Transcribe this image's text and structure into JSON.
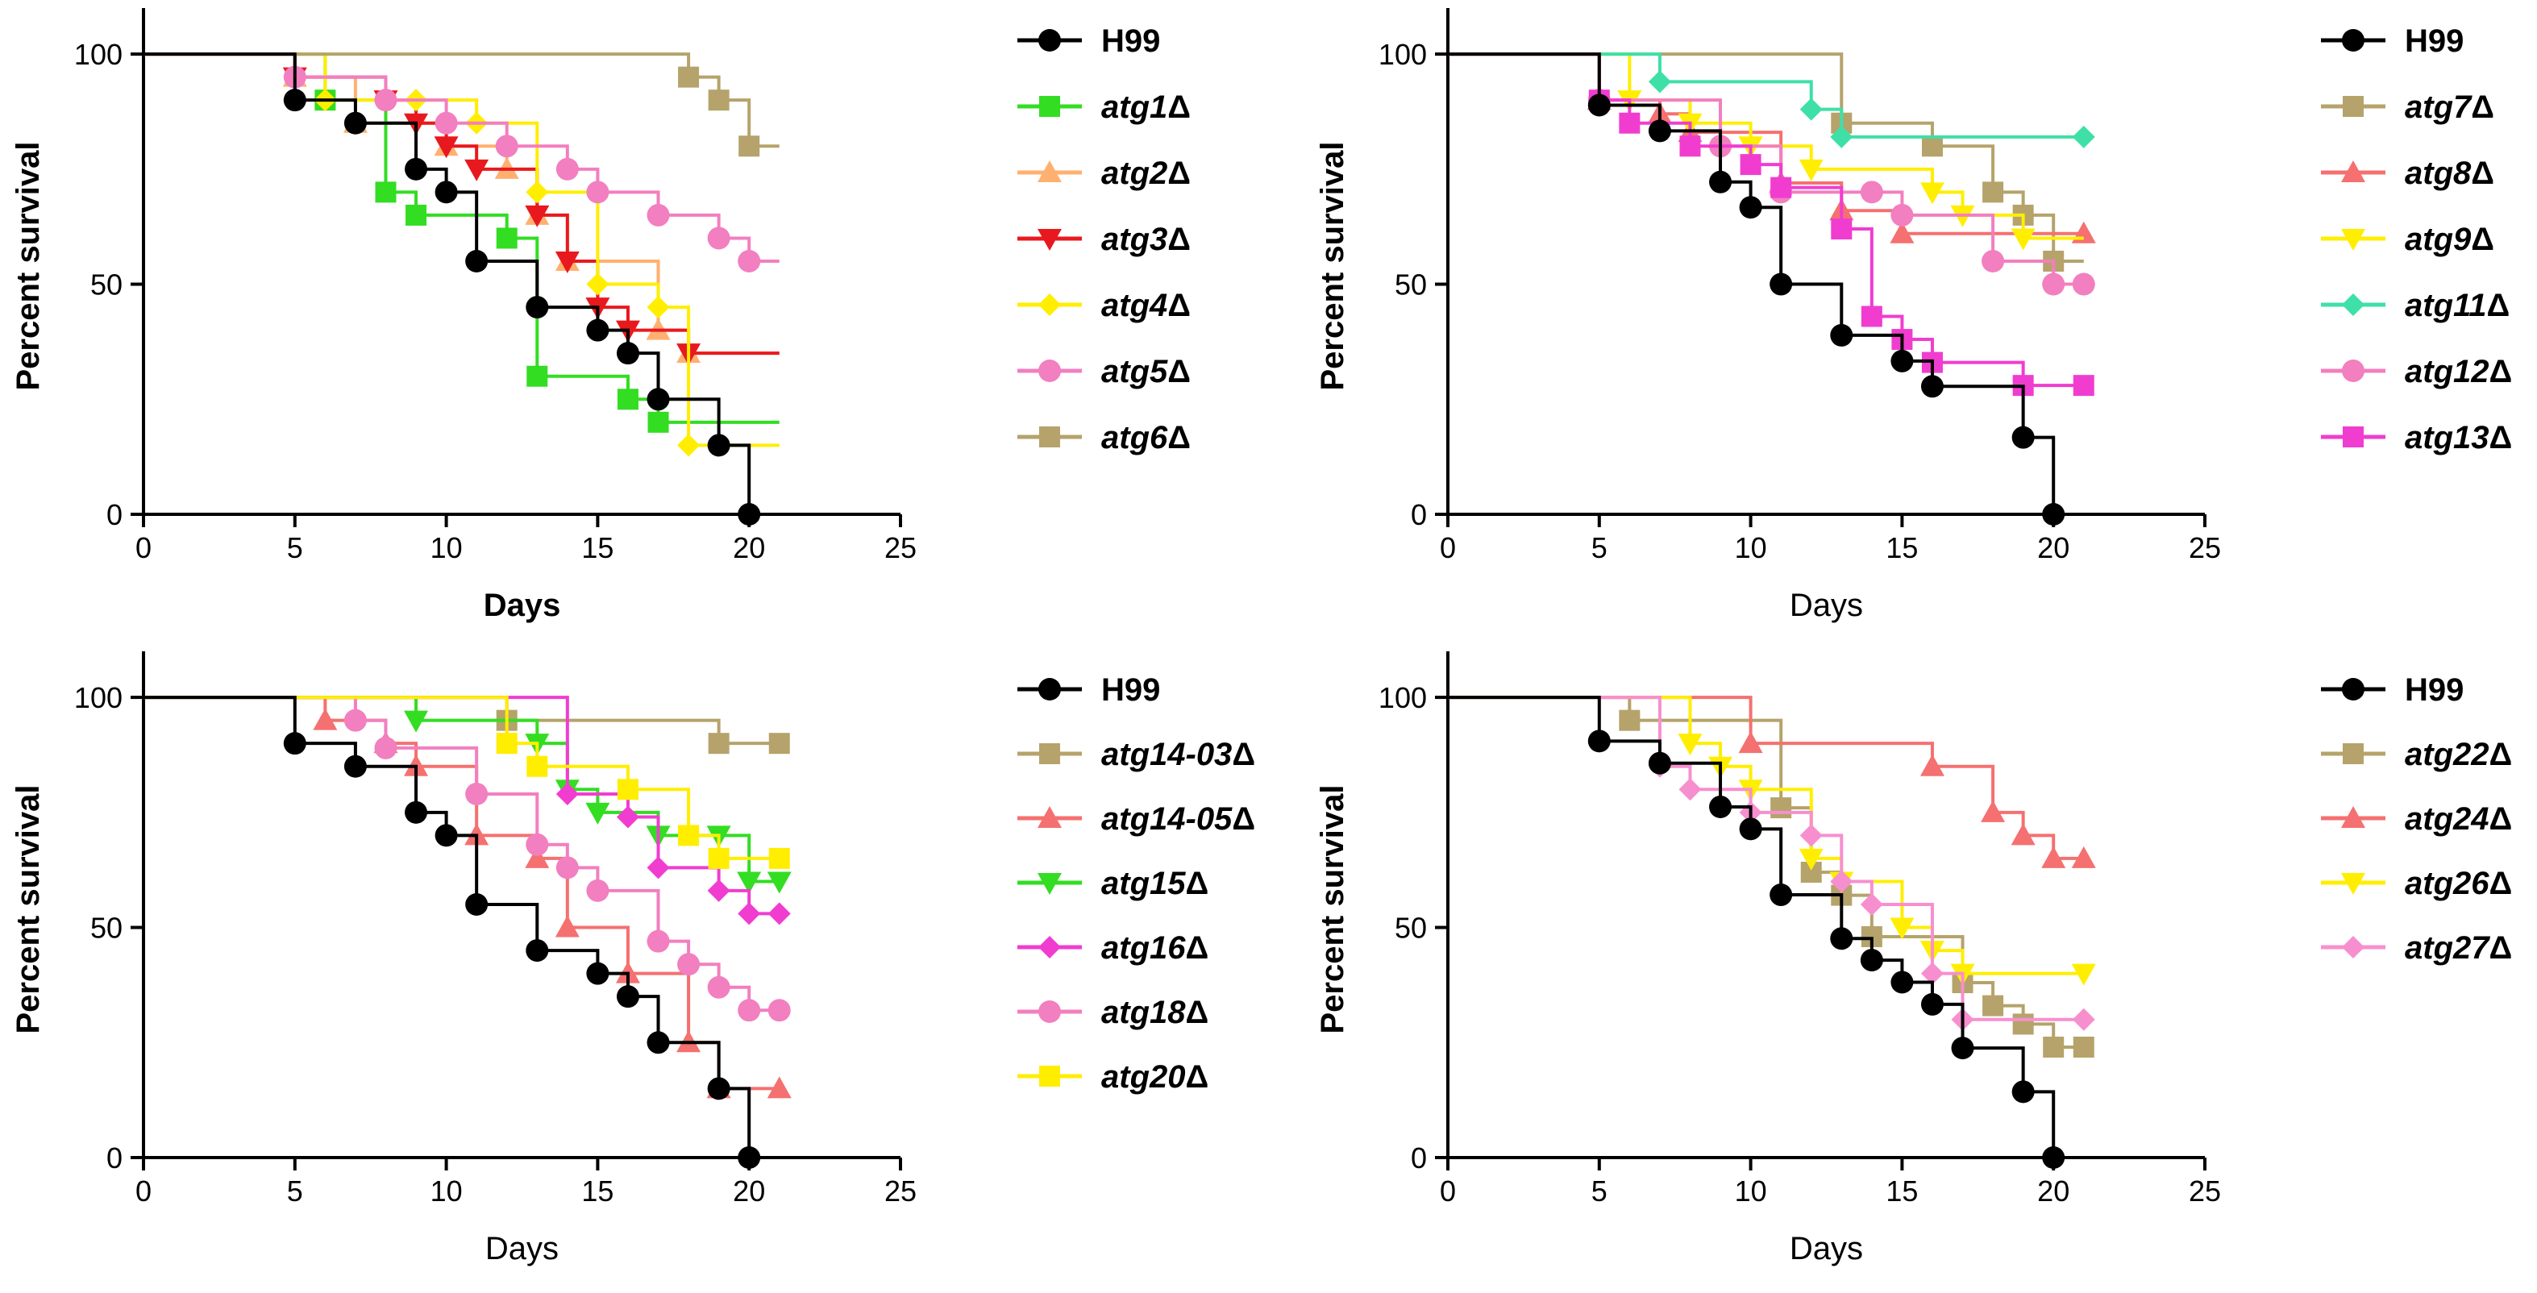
{
  "chart_data": [
    {
      "type": "line",
      "subtype": "kaplan-meier-step",
      "title": "",
      "xlabel": "Days",
      "xlabel_bold": true,
      "ylabel": "Percent survival",
      "xlim": [
        0,
        25
      ],
      "ylim": [
        0,
        110
      ],
      "xticks": [
        0,
        5,
        10,
        15,
        20,
        25
      ],
      "yticks": [
        0,
        50,
        100
      ],
      "legend_position": "right",
      "series": [
        {
          "name": "H99",
          "label_part": "H99",
          "italic": false,
          "color": "#000000",
          "marker": "circle",
          "x": [
            5,
            7,
            9,
            10,
            11,
            13,
            15,
            16,
            17,
            19,
            20
          ],
          "y": [
            90,
            85,
            75,
            70,
            55,
            45,
            40,
            35,
            25,
            15,
            0
          ],
          "end_x": 20
        },
        {
          "name": "atg1Δ",
          "label_part": "atg1",
          "italic": true,
          "color": "#33dd22",
          "marker": "square",
          "x": [
            6,
            8,
            9,
            12,
            13,
            16,
            17
          ],
          "y": [
            90,
            70,
            65,
            60,
            30,
            25,
            20
          ],
          "end_x": 21
        },
        {
          "name": "atg2Δ",
          "label_part": "atg2",
          "italic": true,
          "color": "#ffb070",
          "marker": "triangle-up",
          "x": [
            5,
            7,
            10,
            12,
            13,
            14,
            17,
            18
          ],
          "y": [
            95,
            85,
            80,
            75,
            65,
            55,
            40,
            35
          ],
          "end_x": 21
        },
        {
          "name": "atg3Δ",
          "label_part": "atg3",
          "italic": true,
          "color": "#e8191e",
          "marker": "triangle-down",
          "x": [
            5,
            8,
            9,
            10,
            11,
            13,
            14,
            15,
            16,
            18
          ],
          "y": [
            95,
            90,
            85,
            80,
            75,
            65,
            55,
            45,
            40,
            35
          ],
          "end_x": 21
        },
        {
          "name": "atg4Δ",
          "label_part": "atg4",
          "italic": true,
          "color": "#ffee00",
          "marker": "diamond",
          "x": [
            6,
            9,
            11,
            13,
            15,
            17,
            18
          ],
          "y": [
            90,
            90,
            85,
            70,
            50,
            45,
            15
          ],
          "end_x": 21
        },
        {
          "name": "atg5Δ",
          "label_part": "atg5",
          "italic": true,
          "color": "#f27fbf",
          "marker": "circle",
          "x": [
            5,
            8,
            10,
            12,
            14,
            15,
            17,
            19,
            20
          ],
          "y": [
            95,
            90,
            85,
            80,
            75,
            70,
            65,
            60,
            55
          ],
          "end_x": 21
        },
        {
          "name": "atg6Δ",
          "label_part": "atg6",
          "italic": true,
          "color": "#b5a36b",
          "marker": "square",
          "x": [
            18,
            19,
            20
          ],
          "y": [
            95,
            90,
            80
          ],
          "end_x": 21
        }
      ]
    },
    {
      "type": "line",
      "subtype": "kaplan-meier-step",
      "title": "",
      "xlabel": "Days",
      "xlabel_bold": false,
      "ylabel": "Percent survival",
      "xlim": [
        0,
        25
      ],
      "ylim": [
        0,
        110
      ],
      "xticks": [
        0,
        5,
        10,
        15,
        20,
        25
      ],
      "yticks": [
        0,
        50,
        100
      ],
      "legend_position": "right",
      "series": [
        {
          "name": "H99",
          "label_part": "H99",
          "italic": false,
          "color": "#000000",
          "marker": "circle",
          "x": [
            5,
            7,
            9,
            10,
            11,
            13,
            15,
            16,
            19,
            20
          ],
          "y": [
            88.9,
            83.3,
            72.2,
            66.7,
            50,
            38.9,
            33.3,
            27.8,
            16.7,
            0
          ],
          "end_x": 20
        },
        {
          "name": "atg7Δ",
          "label_part": "atg7",
          "italic": true,
          "color": "#b5a36b",
          "marker": "square",
          "x": [
            13,
            16,
            18,
            19,
            20
          ],
          "y": [
            85,
            80,
            70,
            65,
            55
          ],
          "end_x": 21
        },
        {
          "name": "atg8Δ",
          "label_part": "atg8",
          "italic": true,
          "color": "#f57070",
          "marker": "triangle-up",
          "x": [
            5,
            7,
            8,
            11,
            13,
            15,
            21
          ],
          "y": [
            90,
            87,
            83,
            72,
            66,
            61,
            61
          ],
          "end_x": 21
        },
        {
          "name": "atg9Δ",
          "label_part": "atg9",
          "italic": true,
          "color": "#ffee00",
          "marker": "triangle-down",
          "x": [
            6,
            8,
            10,
            12,
            16,
            17,
            19
          ],
          "y": [
            90,
            85,
            80,
            75,
            70,
            65,
            60
          ],
          "end_x": 21
        },
        {
          "name": "atg11Δ",
          "label_part": "atg11",
          "italic": true,
          "color": "#3ee0a7",
          "marker": "diamond",
          "x": [
            7,
            12,
            13,
            21
          ],
          "y": [
            94,
            88,
            82,
            82
          ],
          "end_x": 21
        },
        {
          "name": "atg12Δ",
          "label_part": "atg12",
          "italic": true,
          "color": "#f27fbf",
          "marker": "circle",
          "x": [
            5,
            9,
            11,
            14,
            15,
            18,
            20,
            21
          ],
          "y": [
            90,
            80,
            70,
            70,
            65,
            55,
            50,
            50
          ],
          "end_x": 21
        },
        {
          "name": "atg13Δ",
          "label_part": "atg13",
          "italic": true,
          "color": "#f03dd0",
          "marker": "square",
          "x": [
            5,
            6,
            8,
            10,
            11,
            13,
            14,
            15,
            16,
            19,
            21
          ],
          "y": [
            90,
            85,
            80,
            76,
            71,
            62,
            43,
            38,
            33,
            28,
            28
          ],
          "end_x": 21
        }
      ]
    },
    {
      "type": "line",
      "subtype": "kaplan-meier-step",
      "title": "",
      "xlabel": "Days",
      "xlabel_bold": false,
      "ylabel": "Percent survival",
      "xlim": [
        0,
        25
      ],
      "ylim": [
        0,
        110
      ],
      "xticks": [
        0,
        5,
        10,
        15,
        20,
        25
      ],
      "yticks": [
        0,
        50,
        100
      ],
      "legend_position": "right",
      "series": [
        {
          "name": "H99",
          "label_part": "H99",
          "italic": false,
          "color": "#000000",
          "marker": "circle",
          "x": [
            5,
            7,
            9,
            10,
            11,
            13,
            15,
            16,
            17,
            19,
            20
          ],
          "y": [
            90,
            85,
            75,
            70,
            55,
            45,
            40,
            35,
            25,
            15,
            0
          ],
          "end_x": 20
        },
        {
          "name": "atg14-03Δ",
          "label_part": "atg14-03",
          "italic": true,
          "color": "#b5a36b",
          "marker": "square",
          "x": [
            12,
            19,
            21
          ],
          "y": [
            95,
            90,
            90
          ],
          "end_x": 21
        },
        {
          "name": "atg14-05Δ",
          "label_part": "atg14-05",
          "italic": true,
          "color": "#f57070",
          "marker": "triangle-up",
          "x": [
            6,
            8,
            9,
            11,
            13,
            14,
            16,
            18,
            19,
            21
          ],
          "y": [
            95,
            90,
            85,
            70,
            65,
            50,
            40,
            25,
            15,
            15
          ],
          "end_x": 21
        },
        {
          "name": "atg15Δ",
          "label_part": "atg15",
          "italic": true,
          "color": "#33dd22",
          "marker": "triangle-down",
          "x": [
            9,
            13,
            14,
            15,
            17,
            19,
            20,
            21
          ],
          "y": [
            95,
            90,
            80,
            75,
            70,
            70,
            60,
            60
          ],
          "end_x": 21
        },
        {
          "name": "atg16Δ",
          "label_part": "atg16",
          "italic": true,
          "color": "#f03dd0",
          "marker": "diamond",
          "x": [
            14,
            16,
            17,
            19,
            20,
            21
          ],
          "y": [
            79,
            74,
            63,
            58,
            53,
            53
          ],
          "end_x": 21
        },
        {
          "name": "atg18Δ",
          "label_part": "atg18",
          "italic": true,
          "color": "#f27fbf",
          "marker": "circle",
          "x": [
            7,
            8,
            11,
            13,
            14,
            15,
            17,
            18,
            19,
            20,
            21
          ],
          "y": [
            95,
            89,
            79,
            68,
            63,
            58,
            47,
            42,
            37,
            32,
            32
          ],
          "end_x": 21
        },
        {
          "name": "atg20Δ",
          "label_part": "atg20",
          "italic": true,
          "color": "#ffee00",
          "marker": "square",
          "x": [
            12,
            13,
            16,
            18,
            19,
            21
          ],
          "y": [
            90,
            85,
            80,
            70,
            65,
            65
          ],
          "end_x": 21
        }
      ]
    },
    {
      "type": "line",
      "subtype": "kaplan-meier-step",
      "title": "",
      "xlabel": "Days",
      "xlabel_bold": false,
      "ylabel": "Percent survival",
      "xlim": [
        0,
        25
      ],
      "ylim": [
        0,
        110
      ],
      "xticks": [
        0,
        5,
        10,
        15,
        20,
        25
      ],
      "yticks": [
        0,
        50,
        100
      ],
      "legend_position": "right",
      "series": [
        {
          "name": "H99",
          "label_part": "H99",
          "italic": false,
          "color": "#000000",
          "marker": "circle",
          "x": [
            5,
            7,
            9,
            10,
            11,
            13,
            14,
            15,
            16,
            17,
            19,
            20
          ],
          "y": [
            90.5,
            85.7,
            76.2,
            71.4,
            57.1,
            47.6,
            42.9,
            38.1,
            33.3,
            23.8,
            14.3,
            0
          ],
          "end_x": 20
        },
        {
          "name": "atg22Δ",
          "label_part": "atg22",
          "italic": true,
          "color": "#b5a36b",
          "marker": "square",
          "x": [
            6,
            11,
            12,
            13,
            14,
            17,
            18,
            19,
            20,
            21
          ],
          "y": [
            95,
            76,
            62,
            57,
            48,
            38,
            33,
            29,
            24,
            24
          ],
          "end_x": 21
        },
        {
          "name": "atg24Δ",
          "label_part": "atg24",
          "italic": true,
          "color": "#f57070",
          "marker": "triangle-up",
          "x": [
            10,
            16,
            18,
            19,
            20,
            21
          ],
          "y": [
            90,
            85,
            75,
            70,
            65,
            65
          ],
          "end_x": 21
        },
        {
          "name": "atg26Δ",
          "label_part": "atg26",
          "italic": true,
          "color": "#ffee00",
          "marker": "triangle-down",
          "x": [
            8,
            9,
            10,
            12,
            13,
            15,
            16,
            17,
            21
          ],
          "y": [
            90,
            85,
            80,
            65,
            60,
            50,
            45,
            40,
            40
          ],
          "end_x": 21
        },
        {
          "name": "atg27Δ",
          "label_part": "atg27",
          "italic": true,
          "color": "#f78fcf",
          "marker": "diamond",
          "x": [
            7,
            8,
            10,
            12,
            13,
            14,
            16,
            17,
            21
          ],
          "y": [
            85,
            80,
            75,
            70,
            60,
            55,
            40,
            30,
            30
          ],
          "end_x": 21
        }
      ]
    }
  ]
}
